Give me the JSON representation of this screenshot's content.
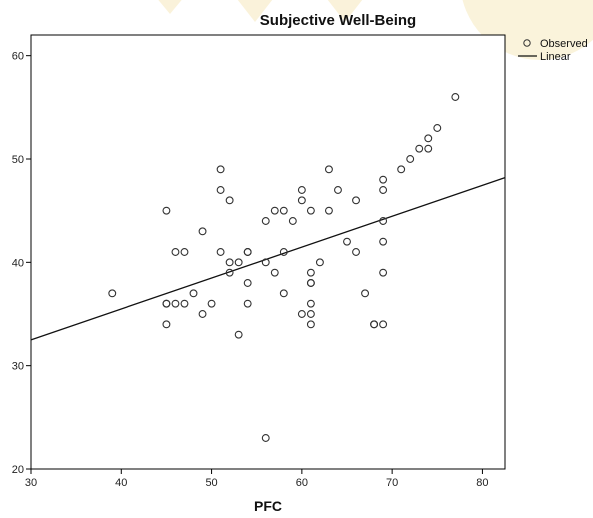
{
  "chart_data": {
    "type": "scatter",
    "title": "Subjective Well-Being",
    "xlabel": "PFC",
    "ylabel": "",
    "xlim": [
      30,
      82.5
    ],
    "ylim": [
      20,
      62
    ],
    "xticks": [
      "30",
      "40",
      "50",
      "60",
      "70",
      "80"
    ],
    "yticks": [
      "20",
      "30",
      "40",
      "50",
      "60"
    ],
    "legend_position": "top-right outside plot",
    "series": [
      {
        "name": "Observed",
        "marker": "open-circle",
        "points": [
          [
            39,
            37
          ],
          [
            45,
            45
          ],
          [
            45,
            36
          ],
          [
            45,
            36
          ],
          [
            45,
            34
          ],
          [
            46,
            41
          ],
          [
            46,
            36
          ],
          [
            47,
            41
          ],
          [
            47,
            36
          ],
          [
            48,
            37
          ],
          [
            49,
            43
          ],
          [
            49,
            35
          ],
          [
            50,
            36
          ],
          [
            51,
            49
          ],
          [
            51,
            47
          ],
          [
            51,
            41
          ],
          [
            52,
            46
          ],
          [
            52,
            40
          ],
          [
            52,
            39
          ],
          [
            53,
            40
          ],
          [
            53,
            33
          ],
          [
            54,
            41
          ],
          [
            54,
            41
          ],
          [
            54,
            38
          ],
          [
            54,
            36
          ],
          [
            56,
            44
          ],
          [
            56,
            40
          ],
          [
            56,
            23
          ],
          [
            57,
            45
          ],
          [
            57,
            39
          ],
          [
            58,
            45
          ],
          [
            58,
            41
          ],
          [
            58,
            37
          ],
          [
            59,
            44
          ],
          [
            60,
            47
          ],
          [
            60,
            46
          ],
          [
            60,
            35
          ],
          [
            61,
            45
          ],
          [
            61,
            39
          ],
          [
            61,
            38
          ],
          [
            61,
            38
          ],
          [
            61,
            36
          ],
          [
            61,
            35
          ],
          [
            61,
            34
          ],
          [
            62,
            40
          ],
          [
            63,
            49
          ],
          [
            63,
            45
          ],
          [
            64,
            47
          ],
          [
            65,
            42
          ],
          [
            66,
            46
          ],
          [
            66,
            41
          ],
          [
            67,
            37
          ],
          [
            68,
            34
          ],
          [
            68,
            34
          ],
          [
            69,
            48
          ],
          [
            69,
            47
          ],
          [
            69,
            44
          ],
          [
            69,
            42
          ],
          [
            69,
            39
          ],
          [
            69,
            34
          ],
          [
            71,
            49
          ],
          [
            72,
            50
          ],
          [
            73,
            51
          ],
          [
            74,
            52
          ],
          [
            74,
            51
          ],
          [
            75,
            53
          ],
          [
            77,
            56
          ]
        ]
      },
      {
        "name": "Linear",
        "type": "line",
        "fit": {
          "x": [
            30,
            82.5
          ],
          "y": [
            32.5,
            48.2
          ]
        }
      }
    ],
    "colors": {
      "marker": "#333333",
      "line": "#111111",
      "axis": "#000000",
      "background": "#ffffff"
    }
  }
}
